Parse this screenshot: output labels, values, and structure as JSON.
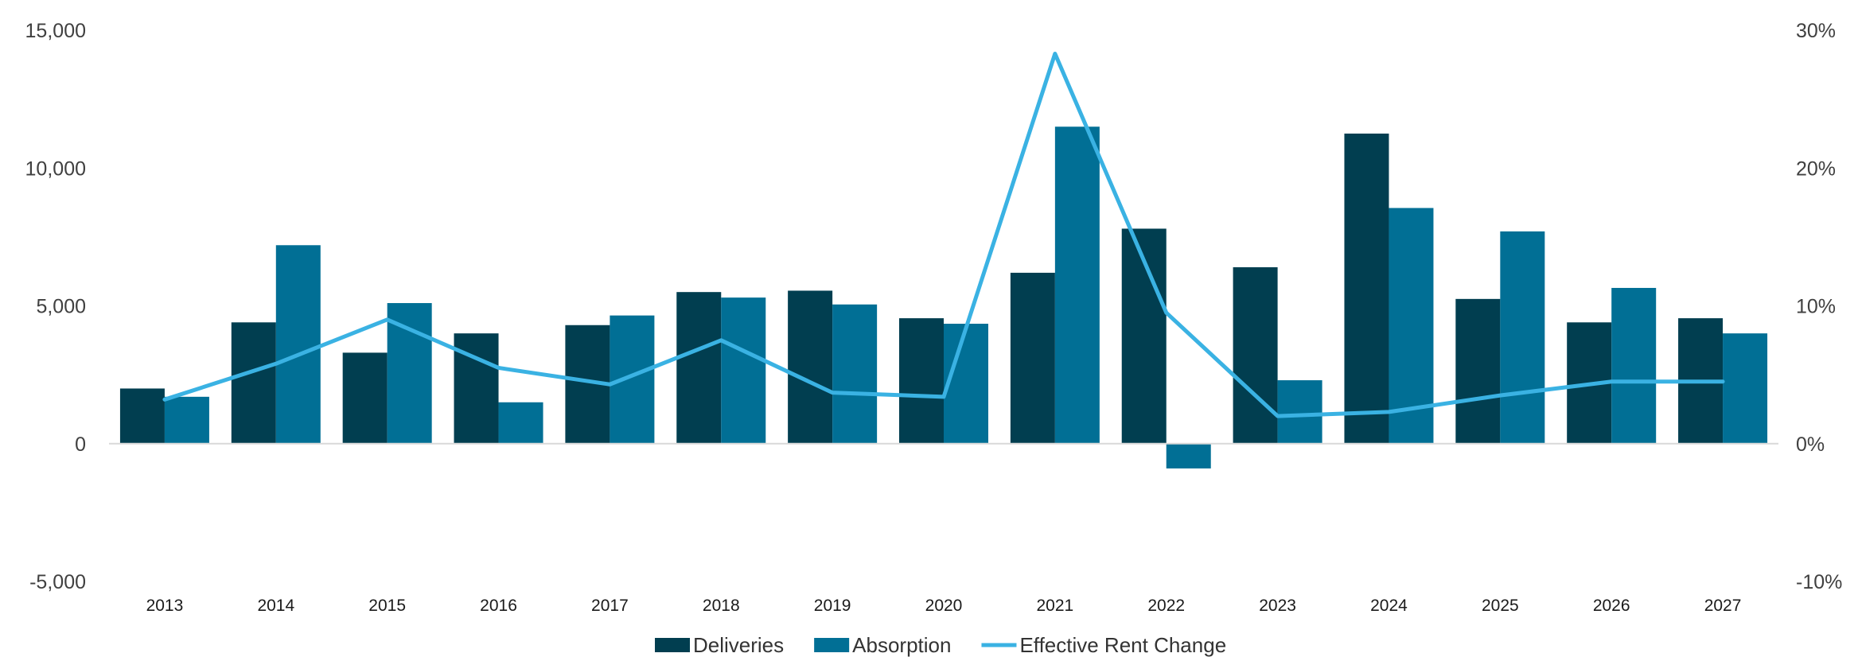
{
  "chart_data": {
    "type": "bar",
    "categories": [
      "2013",
      "2014",
      "2015",
      "2016",
      "2017",
      "2018",
      "2019",
      "2020",
      "2021",
      "2022",
      "2023",
      "2024",
      "2025",
      "2026",
      "2027"
    ],
    "series": [
      {
        "name": "Deliveries",
        "kind": "bar",
        "axis": "left",
        "color": "#013e50",
        "values": [
          2000,
          4400,
          3300,
          4000,
          4300,
          5500,
          5550,
          4550,
          6200,
          7800,
          6400,
          11250,
          5250,
          4400,
          4550
        ]
      },
      {
        "name": "Absorption",
        "kind": "bar",
        "axis": "left",
        "color": "#016f95",
        "values": [
          1700,
          7200,
          5100,
          1500,
          4650,
          5300,
          5050,
          4350,
          11500,
          -900,
          2300,
          8550,
          7700,
          5650,
          4000
        ]
      },
      {
        "name": "Effective Rent Change",
        "kind": "line",
        "axis": "right",
        "color": "#3ab2e3",
        "values": [
          3.2,
          5.8,
          9.0,
          5.5,
          4.3,
          7.5,
          3.7,
          3.4,
          28.3,
          9.5,
          2.0,
          2.3,
          3.5,
          4.5,
          4.5
        ]
      }
    ],
    "y_left": {
      "min": -5000,
      "max": 15000,
      "ticks": [
        -5000,
        0,
        5000,
        10000,
        15000
      ],
      "tick_labels": [
        "-5,000",
        "0",
        "5,000",
        "10,000",
        "15,000"
      ]
    },
    "y_right": {
      "min": -10,
      "max": 30,
      "ticks": [
        -10,
        0,
        10,
        20,
        30
      ],
      "tick_labels": [
        "-10%",
        "0%",
        "10%",
        "20%",
        "30%"
      ]
    },
    "grid": false,
    "legend_position": "bottom-center",
    "title": "",
    "xlabel": "",
    "ylabel": ""
  }
}
